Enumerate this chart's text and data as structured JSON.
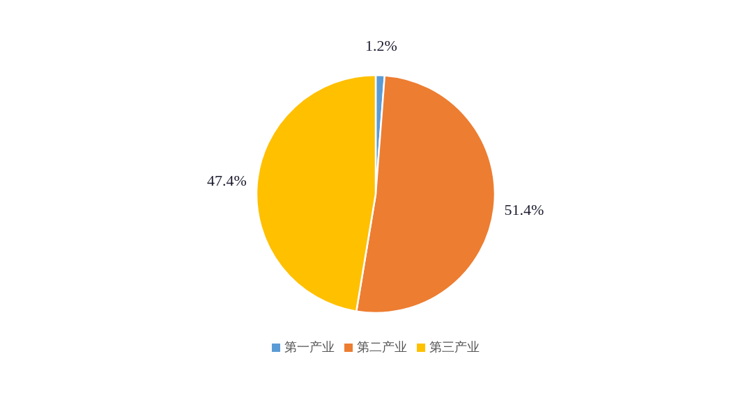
{
  "chart_data": {
    "type": "pie",
    "categories": [
      "第一产业",
      "第二产业",
      "第三产业"
    ],
    "values": [
      1.2,
      51.4,
      47.4
    ],
    "colors": [
      "#5b9bd5",
      "#ed7d31",
      "#ffc000"
    ],
    "value_labels": [
      "1.2%",
      "51.4%",
      "47.4%"
    ],
    "legend": "bottom"
  }
}
